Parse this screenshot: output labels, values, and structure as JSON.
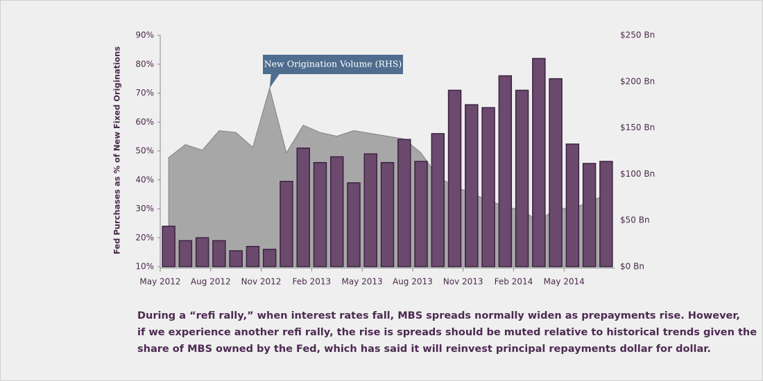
{
  "chart_data": {
    "type": "bar",
    "y_label": "Fed Purchases as % of New Fixed Originations",
    "annotation": "New Origination Volume (RHS)",
    "categories": [
      "May 2012",
      null,
      null,
      "Aug 2012",
      null,
      null,
      "Nov 2012",
      null,
      null,
      "Feb 2013",
      null,
      null,
      "May 2013",
      null,
      null,
      "Aug 2013",
      null,
      null,
      "Nov 2013",
      null,
      null,
      "Feb 2014",
      null,
      null,
      "May 2014",
      null,
      null
    ],
    "series": [
      {
        "type": "bar",
        "axis": "y",
        "color": "#6b4a6e",
        "values": [
          24,
          19,
          20,
          19,
          15.5,
          17,
          16,
          39.5,
          51,
          46,
          48,
          39,
          49,
          46,
          54,
          46.4,
          56,
          71,
          66,
          65,
          76,
          71,
          82,
          75,
          52.4,
          45.7,
          46.4
        ]
      },
      {
        "type": "area",
        "axis": "y2",
        "color": "#9a9a9a",
        "values": [
          118,
          132,
          126,
          147,
          145,
          129,
          193,
          123,
          153,
          145,
          141,
          147,
          144,
          141,
          138,
          123,
          97,
          87,
          79,
          72,
          65,
          61,
          49,
          63,
          63,
          70,
          78
        ]
      }
    ],
    "ylim": [
      10,
      90
    ],
    "yticks": [
      {
        "value": 10,
        "label": "10%"
      },
      {
        "value": 20,
        "label": "20%"
      },
      {
        "value": 30,
        "label": "30%"
      },
      {
        "value": 40,
        "label": "40%"
      },
      {
        "value": 50,
        "label": "50%"
      },
      {
        "value": 60,
        "label": "60%"
      },
      {
        "value": 70,
        "label": "70%"
      },
      {
        "value": 80,
        "label": "80%"
      },
      {
        "value": 90,
        "label": "90%"
      }
    ],
    "y2lim": [
      0,
      250
    ],
    "y2ticks": [
      {
        "value": 0,
        "label": "$0 Bn"
      },
      {
        "value": 50,
        "label": "$50 Bn"
      },
      {
        "value": 100,
        "label": "$100 Bn"
      },
      {
        "value": 150,
        "label": "$150 Bn"
      },
      {
        "value": 200,
        "label": "$200 Bn"
      },
      {
        "value": 250,
        "label": "$250 Bn"
      }
    ],
    "caption_lines": [
      "During a “refi rally,” when interest rates fall, MBS spreads normally widen as  prepayments rise. However,",
      "if we experience another refi rally, the rise is spreads should be muted relative to historical trends given the",
      "share of MBS owned by the Fed, which has said it will reinvest principal repayments dollar for dollar."
    ]
  }
}
